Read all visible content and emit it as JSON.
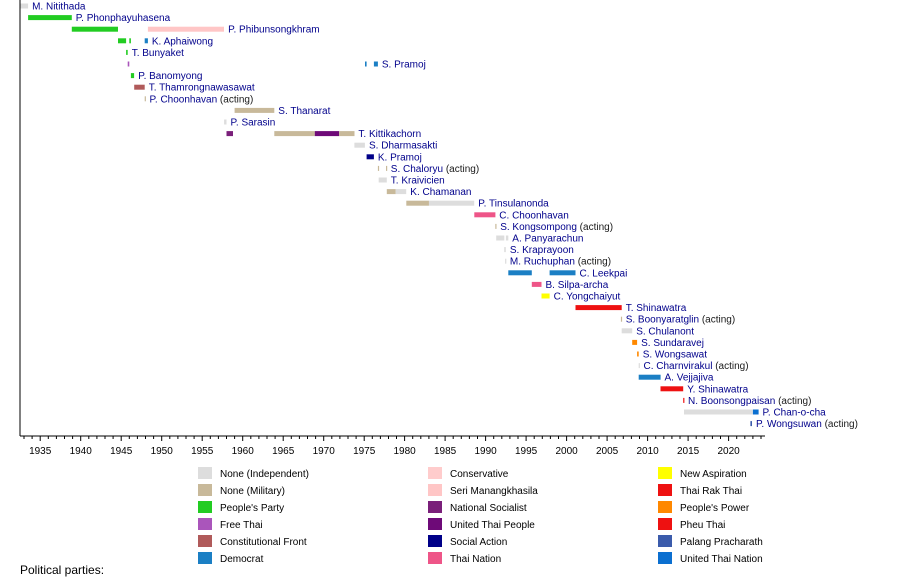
{
  "chart_data": {
    "type": "bar",
    "subtype": "timeline",
    "title": "",
    "xlabel": "",
    "ylabel": "",
    "xlim": [
      1932.5,
      2024.5
    ],
    "x_ticks": [
      1935,
      1940,
      1945,
      1950,
      1955,
      1960,
      1965,
      1970,
      1975,
      1980,
      1985,
      1990,
      1995,
      2000,
      2005,
      2010,
      2015,
      2020
    ],
    "grid": false,
    "legend_title": "Political parties:",
    "legend_position": "bottom",
    "parties": [
      {
        "key": "ind",
        "name": "None (Independent)",
        "color": "#dddddd"
      },
      {
        "key": "mil",
        "name": "None (Military)",
        "color": "#c8b99a"
      },
      {
        "key": "pp",
        "name": "People's Party",
        "color": "#22cc22"
      },
      {
        "key": "ft",
        "name": "Free Thai",
        "color": "#aa55bb"
      },
      {
        "key": "cf",
        "name": "Constitutional Front",
        "color": "#b05a5a"
      },
      {
        "key": "dem",
        "name": "Democrat",
        "color": "#1b7fc4"
      },
      {
        "key": "con",
        "name": "Conservative",
        "color": "#ffcccc"
      },
      {
        "key": "smk",
        "name": "Seri Manangkhasila",
        "color": "#ffc6c6"
      },
      {
        "key": "ns",
        "name": "National Socialist",
        "color": "#7a1f7a"
      },
      {
        "key": "utp",
        "name": "United Thai People",
        "color": "#6e0a78"
      },
      {
        "key": "sa",
        "name": "Social Action",
        "color": "#000088"
      },
      {
        "key": "tn",
        "name": "Thai Nation",
        "color": "#ee5588"
      },
      {
        "key": "na",
        "name": "New Aspiration",
        "color": "#ffff00"
      },
      {
        "key": "trt",
        "name": "Thai Rak Thai",
        "color": "#ee1111"
      },
      {
        "key": "ppp",
        "name": "People's Power",
        "color": "#ff8800"
      },
      {
        "key": "pt",
        "name": "Pheu Thai",
        "color": "#ee1111"
      },
      {
        "key": "pprp",
        "name": "Palang Pracharath",
        "color": "#3b5bab"
      },
      {
        "key": "utn",
        "name": "United Thai Nation",
        "color": "#0b6fd0"
      }
    ],
    "rows": [
      {
        "label": "M. Nitithada",
        "acting": false,
        "terms": [
          [
            1932.5,
            1933.5,
            "ind"
          ]
        ]
      },
      {
        "label": "P. Phonphayuhasena",
        "acting": false,
        "terms": [
          [
            1933.5,
            1938.9,
            "pp"
          ]
        ]
      },
      {
        "label": "P. Phibunsongkhram",
        "acting": false,
        "terms": [
          [
            1938.9,
            1944.6,
            "pp"
          ],
          [
            1948.3,
            1957.7,
            "smk"
          ]
        ]
      },
      {
        "label": "K. Aphaiwong",
        "acting": false,
        "terms": [
          [
            1944.6,
            1945.6,
            "pp"
          ],
          [
            1946.0,
            1946.2,
            "pp"
          ],
          [
            1947.9,
            1948.3,
            "dem"
          ]
        ]
      },
      {
        "label": "T. Bunyaket",
        "acting": false,
        "terms": [
          [
            1945.6,
            1945.8,
            "pp"
          ]
        ]
      },
      {
        "label": "S. Pramoj",
        "acting": false,
        "terms": [
          [
            1945.8,
            1946.0,
            "ft"
          ],
          [
            1975.1,
            1975.3,
            "dem"
          ],
          [
            1976.2,
            1976.7,
            "dem"
          ]
        ]
      },
      {
        "label": "P. Banomyong",
        "acting": false,
        "terms": [
          [
            1946.2,
            1946.6,
            "pp"
          ]
        ]
      },
      {
        "label": "T. Thamrongnawasawat",
        "acting": false,
        "terms": [
          [
            1946.6,
            1947.9,
            "cf"
          ]
        ]
      },
      {
        "label": "P. Choonhavan",
        "note": "(acting)",
        "acting": true,
        "terms": [
          [
            1947.9,
            1948.0,
            "mil"
          ]
        ]
      },
      {
        "label": "S. Thanarat",
        "acting": false,
        "terms": [
          [
            1959.0,
            1963.9,
            "mil"
          ]
        ]
      },
      {
        "label": "P. Sarasin",
        "acting": false,
        "terms": [
          [
            1957.7,
            1958.0,
            "ind"
          ]
        ]
      },
      {
        "label": "T. Kittikachorn",
        "acting": false,
        "terms": [
          [
            1958.0,
            1958.8,
            "ns"
          ],
          [
            1963.9,
            1968.9,
            "mil"
          ],
          [
            1968.9,
            1971.9,
            "utp"
          ],
          [
            1971.9,
            1973.8,
            "mil"
          ]
        ]
      },
      {
        "label": "S. Dharmasakti",
        "acting": false,
        "terms": [
          [
            1973.8,
            1975.1,
            "ind"
          ]
        ]
      },
      {
        "label": "K. Pramoj",
        "acting": false,
        "terms": [
          [
            1975.3,
            1976.2,
            "sa"
          ]
        ]
      },
      {
        "label": "S. Chaloryu",
        "note": "(acting)",
        "acting": true,
        "terms": [
          [
            1976.7,
            1976.8,
            "mil"
          ],
          [
            1977.7,
            1977.8,
            "mil"
          ]
        ]
      },
      {
        "label": "T. Kraivicien",
        "acting": false,
        "terms": [
          [
            1976.8,
            1977.8,
            "ind"
          ]
        ]
      },
      {
        "label": "K. Chamanan",
        "acting": false,
        "terms": [
          [
            1977.8,
            1978.9,
            "mil"
          ],
          [
            1978.9,
            1980.2,
            "ind"
          ]
        ]
      },
      {
        "label": "P. Tinsulanonda",
        "acting": false,
        "terms": [
          [
            1980.2,
            1983.0,
            "mil"
          ],
          [
            1983.0,
            1988.6,
            "ind"
          ]
        ]
      },
      {
        "label": "C. Choonhavan",
        "acting": false,
        "terms": [
          [
            1988.6,
            1991.2,
            "tn"
          ]
        ]
      },
      {
        "label": "S. Kongsompong",
        "note": "(acting)",
        "acting": true,
        "terms": [
          [
            1991.2,
            1991.3,
            "mil"
          ]
        ]
      },
      {
        "label": "A. Panyarachun",
        "acting": false,
        "terms": [
          [
            1991.3,
            1992.3,
            "ind"
          ],
          [
            1992.5,
            1992.8,
            "ind"
          ]
        ]
      },
      {
        "label": "S. Kraprayoon",
        "acting": false,
        "terms": [
          [
            1992.3,
            1992.5,
            "ind"
          ]
        ]
      },
      {
        "label": "M. Ruchuphan",
        "note": "(acting)",
        "acting": true,
        "terms": [
          [
            1992.4,
            1992.5,
            "ind"
          ]
        ]
      },
      {
        "label": "C. Leekpai",
        "acting": false,
        "terms": [
          [
            1992.8,
            1995.7,
            "dem"
          ],
          [
            1997.9,
            2001.1,
            "dem"
          ]
        ]
      },
      {
        "label": "B. Silpa-archa",
        "acting": false,
        "terms": [
          [
            1995.7,
            1996.9,
            "tn"
          ]
        ]
      },
      {
        "label": "C. Yongchaiyut",
        "acting": false,
        "terms": [
          [
            1996.9,
            1997.9,
            "na"
          ]
        ]
      },
      {
        "label": "T. Shinawatra",
        "acting": false,
        "terms": [
          [
            2001.1,
            2006.8,
            "trt"
          ]
        ]
      },
      {
        "label": "S. Boonyaratglin",
        "note": "(acting)",
        "acting": true,
        "terms": [
          [
            2006.7,
            2006.8,
            "mil"
          ]
        ]
      },
      {
        "label": "S. Chulanont",
        "acting": false,
        "terms": [
          [
            2006.8,
            2008.1,
            "ind"
          ]
        ]
      },
      {
        "label": "S. Sundaravej",
        "acting": false,
        "terms": [
          [
            2008.1,
            2008.7,
            "ppp"
          ]
        ]
      },
      {
        "label": "S. Wongsawat",
        "acting": false,
        "terms": [
          [
            2008.7,
            2008.9,
            "ppp"
          ]
        ]
      },
      {
        "label": "C. Charnvirakul",
        "note": "(acting)",
        "acting": true,
        "terms": [
          [
            2008.9,
            2009.0,
            "ind"
          ]
        ]
      },
      {
        "label": "A. Vejjajiva",
        "acting": false,
        "terms": [
          [
            2008.9,
            2011.6,
            "dem"
          ]
        ]
      },
      {
        "label": "Y. Shinawatra",
        "acting": false,
        "terms": [
          [
            2011.6,
            2014.4,
            "pt"
          ]
        ]
      },
      {
        "label": "N. Boonsongpaisan",
        "note": "(acting)",
        "acting": true,
        "terms": [
          [
            2014.4,
            2014.5,
            "pt"
          ]
        ]
      },
      {
        "label": "P. Chan-o-cha",
        "acting": false,
        "terms": [
          [
            2014.5,
            2019.5,
            "ind"
          ],
          [
            2019.5,
            2023.0,
            "ind"
          ],
          [
            2023.0,
            2023.7,
            "utn"
          ]
        ]
      },
      {
        "label": "P. Wongsuwan",
        "note": "(acting)",
        "acting": true,
        "terms": [
          [
            2022.7,
            2022.9,
            "pprp"
          ]
        ]
      }
    ]
  }
}
